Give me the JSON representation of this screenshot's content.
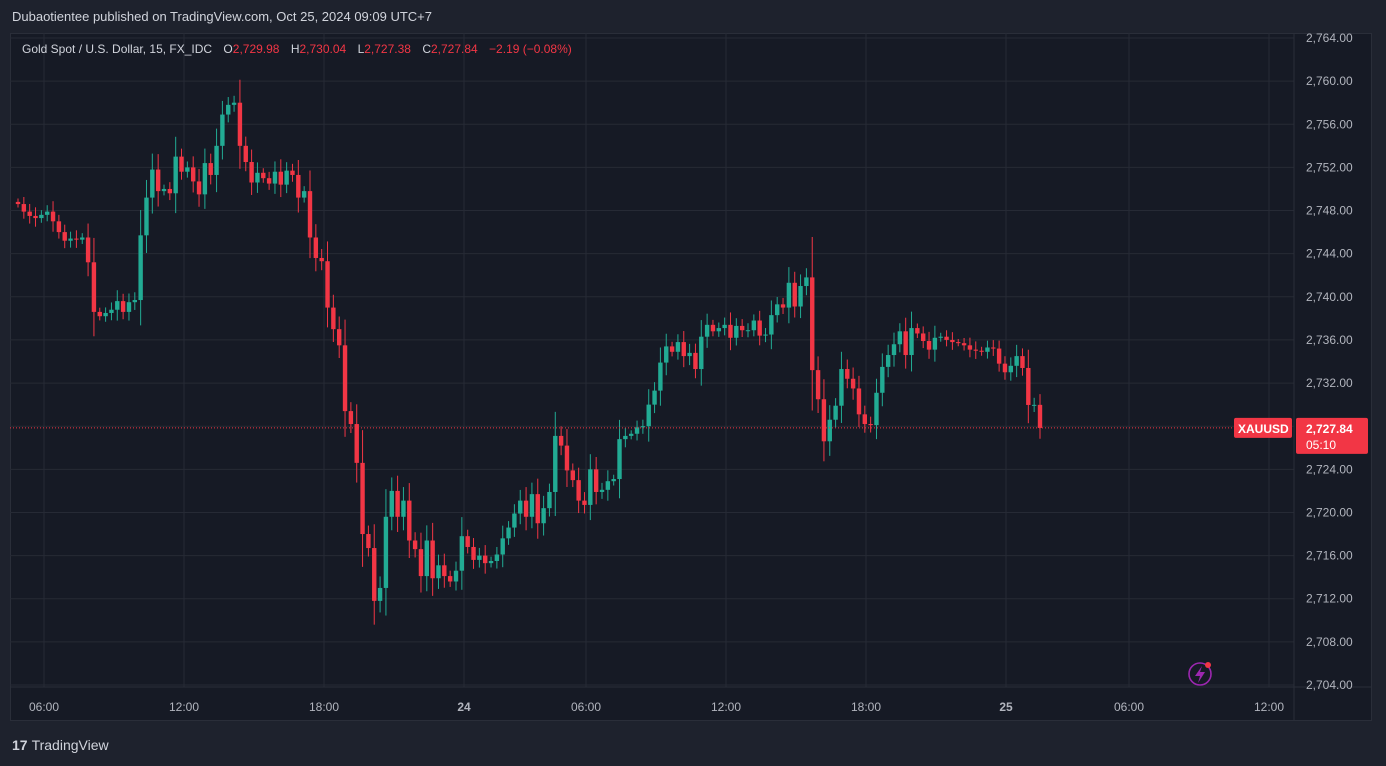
{
  "header": {
    "publisher": "Dubaotientee published on TradingView.com, Oct 25, 2024 09:09 UTC+7"
  },
  "legend": {
    "symbol": "Gold Spot / U.S. Dollar, 15, FX_IDC",
    "o_label": "O",
    "o": "2,729.98",
    "h_label": "H",
    "h": "2,730.04",
    "l_label": "L",
    "l": "2,727.38",
    "c_label": "C",
    "c": "2,727.84",
    "change": "−2.19 (−0.08%)"
  },
  "price_tag": {
    "symbol": "XAUUSD",
    "price": "2,727.84",
    "countdown": "05:10"
  },
  "footer": {
    "brand": "TradingView",
    "logo_glyph": "17"
  },
  "colors": {
    "up": "#22ab94",
    "down": "#f23645",
    "background": "#161a25",
    "grid": "#262a35",
    "text": "#b2b5be"
  },
  "icons": {
    "bottom_right": "lightning-icon"
  },
  "chart_data": {
    "type": "candlestick",
    "yticks": [
      "2,764.00",
      "2,760.00",
      "2,756.00",
      "2,752.00",
      "2,748.00",
      "2,744.00",
      "2,740.00",
      "2,736.00",
      "2,732.00",
      "2,728.00",
      "2,724.00",
      "2,720.00",
      "2,716.00",
      "2,712.00",
      "2,708.00",
      "2,704.00"
    ],
    "ylim": [
      2704,
      2764
    ],
    "xticks": [
      "06:00",
      "12:00",
      "18:00",
      "24",
      "06:00",
      "12:00",
      "18:00",
      "25",
      "06:00",
      "12:00"
    ],
    "last_price": 2727.84,
    "grid": true,
    "closes": [
      2748.6,
      2747.9,
      2747.5,
      2747.3,
      2747.6,
      2747.9,
      2747.0,
      2746.0,
      2745.2,
      2745.4,
      2745.3,
      2745.5,
      2743.2,
      2738.6,
      2738.2,
      2738.5,
      2738.8,
      2739.6,
      2738.6,
      2739.5,
      2739.7,
      2745.7,
      2749.2,
      2751.8,
      2749.8,
      2750.0,
      2749.6,
      2753.0,
      2751.6,
      2752.0,
      2750.7,
      2749.5,
      2752.4,
      2751.3,
      2754.0,
      2756.9,
      2757.8,
      2758.0,
      2754.0,
      2752.5,
      2750.6,
      2751.5,
      2751.0,
      2750.5,
      2751.6,
      2750.4,
      2751.7,
      2751.3,
      2749.2,
      2749.8,
      2745.5,
      2743.6,
      2743.3,
      2739.0,
      2737.0,
      2735.5,
      2729.4,
      2728.2,
      2724.6,
      2718.0,
      2716.7,
      2711.8,
      2713.0,
      2719.6,
      2722.0,
      2719.6,
      2721.1,
      2717.4,
      2716.6,
      2714.1,
      2717.4,
      2713.9,
      2715.1,
      2714.1,
      2713.6,
      2714.6,
      2717.8,
      2716.8,
      2715.6,
      2716.0,
      2715.3,
      2715.5,
      2716.1,
      2717.6,
      2718.6,
      2719.9,
      2721.1,
      2719.6,
      2721.7,
      2719.0,
      2720.4,
      2721.9,
      2727.1,
      2726.2,
      2723.9,
      2723.0,
      2721.1,
      2720.7,
      2724.0,
      2721.9,
      2722.1,
      2722.9,
      2723.1,
      2726.8,
      2727.1,
      2727.3,
      2727.9,
      2728.0,
      2730.0,
      2731.3,
      2733.9,
      2735.4,
      2734.9,
      2735.8,
      2734.5,
      2734.8,
      2733.3,
      2736.3,
      2737.4,
      2736.8,
      2737.1,
      2737.4,
      2736.2,
      2737.3,
      2736.9,
      2736.9,
      2737.8,
      2736.4,
      2736.5,
      2738.3,
      2739.3,
      2739.0,
      2741.3,
      2739.1,
      2741.0,
      2741.8,
      2733.2,
      2730.5,
      2726.6,
      2728.6,
      2729.9,
      2733.3,
      2732.4,
      2731.5,
      2729.1,
      2728.2,
      2728.1,
      2731.1,
      2733.5,
      2734.6,
      2735.6,
      2736.8,
      2734.6,
      2737.1,
      2736.6,
      2735.9,
      2735.1,
      2736.2,
      2736.3,
      2736.0,
      2735.8,
      2735.7,
      2735.5,
      2735.1,
      2735.0,
      2734.9,
      2735.3,
      2735.2,
      2733.8,
      2733.0,
      2733.6,
      2734.5,
      2733.4,
      2729.97,
      2729.98,
      2727.84
    ]
  }
}
